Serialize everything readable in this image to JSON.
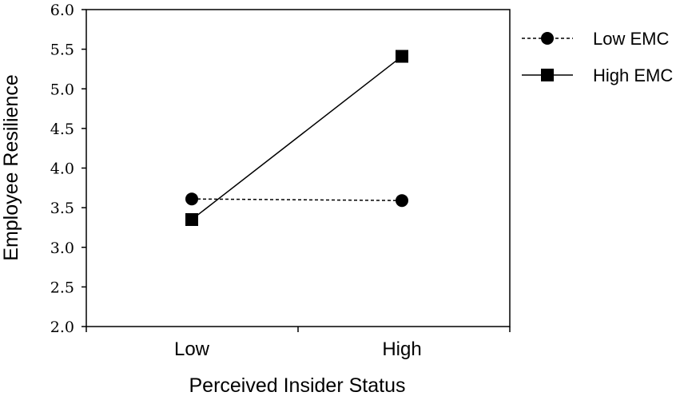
{
  "chart_data": {
    "type": "line",
    "categories": [
      "Low",
      "High"
    ],
    "series": [
      {
        "name": "Low EMC",
        "values": [
          3.61,
          3.59
        ],
        "marker": "circle",
        "line_style": "dashed"
      },
      {
        "name": "High EMC",
        "values": [
          3.35,
          5.41
        ],
        "marker": "square",
        "line_style": "solid"
      }
    ],
    "xlabel": "Perceived Insider Status",
    "ylabel": "Employee Resilience",
    "ylim": [
      2.0,
      6.0
    ],
    "yticks": [
      "2.0",
      "2.5",
      "3.0",
      "3.5",
      "4.0",
      "4.5",
      "5.0",
      "5.5",
      "6.0"
    ],
    "grid": false,
    "legend_position": "right",
    "colors": {
      "line": "#000000",
      "background": "#ffffff"
    }
  }
}
